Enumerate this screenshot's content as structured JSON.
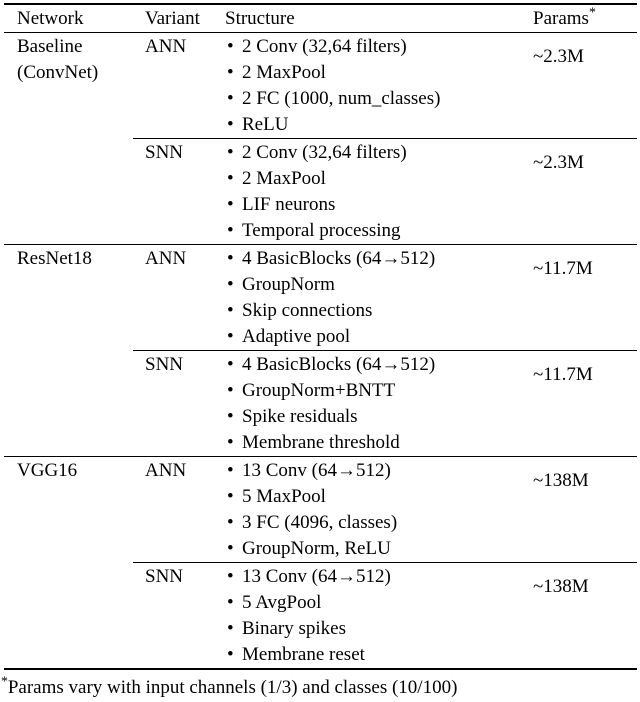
{
  "page": {
    "background_color": "#ffffff",
    "text_color": "#000000"
  },
  "table": {
    "bullet": "•",
    "headers": {
      "network": "Network",
      "variant": "Variant",
      "structure": "Structure",
      "params": "Params",
      "params_sup": "*"
    },
    "groups": [
      {
        "network_lines": [
          "Baseline",
          "(ConvNet)"
        ],
        "variants": [
          {
            "variant": "ANN",
            "structure": [
              "2 Conv (32,64 filters)",
              "2 MaxPool",
              "2 FC (1000, num_classes)",
              "ReLU"
            ],
            "params": "~2.3M"
          },
          {
            "variant": "SNN",
            "structure": [
              "2 Conv (32,64 filters)",
              "2 MaxPool",
              "LIF neurons",
              "Temporal processing"
            ],
            "params": "~2.3M"
          }
        ]
      },
      {
        "network_lines": [
          "ResNet18"
        ],
        "variants": [
          {
            "variant": "ANN",
            "structure": [
              "4 BasicBlocks (64→512)",
              "GroupNorm",
              "Skip connections",
              "Adaptive pool"
            ],
            "params": "~11.7M"
          },
          {
            "variant": "SNN",
            "structure": [
              "4 BasicBlocks (64→512)",
              "GroupNorm+BNTT",
              "Spike residuals",
              "Membrane threshold"
            ],
            "params": "~11.7M"
          }
        ]
      },
      {
        "network_lines": [
          "VGG16"
        ],
        "variants": [
          {
            "variant": "ANN",
            "structure": [
              "13 Conv (64→512)",
              "5 MaxPool",
              "3 FC (4096, classes)",
              "GroupNorm, ReLU"
            ],
            "params": "~138M"
          },
          {
            "variant": "SNN",
            "structure": [
              "13 Conv (64→512)",
              "5 AvgPool",
              "Binary spikes",
              "Membrane reset"
            ],
            "params": "~138M"
          }
        ]
      }
    ]
  },
  "footnote": {
    "sup": "*",
    "text": "Params vary with input channels (1/3) and classes (10/100)"
  }
}
